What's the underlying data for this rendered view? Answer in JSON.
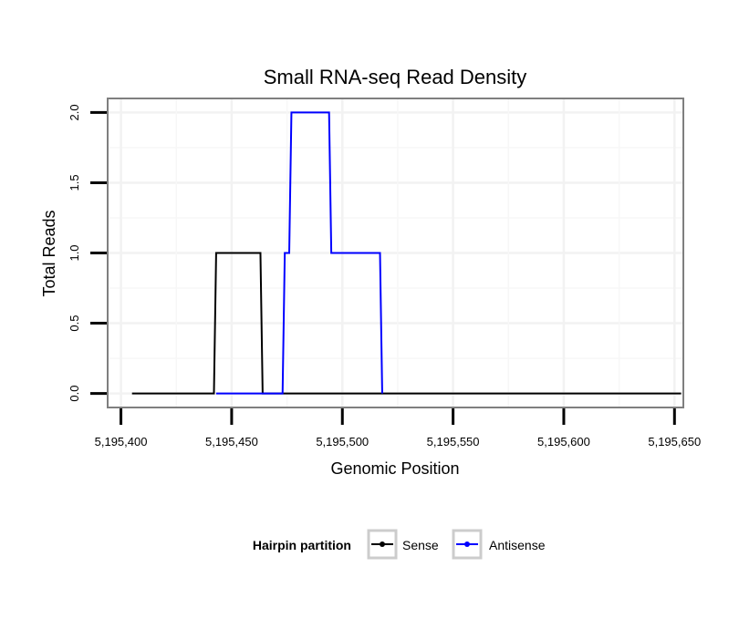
{
  "chart_data": {
    "type": "line",
    "title": "Small RNA-seq Read Density",
    "xlabel": "Genomic Position",
    "ylabel": "Total Reads",
    "xlim": [
      5195394,
      5195654
    ],
    "ylim": [
      -0.1,
      2.1
    ],
    "x_ticks": [
      5195400,
      5195450,
      5195500,
      5195550,
      5195600,
      5195650
    ],
    "x_tick_labels": [
      "5,195,400",
      "5,195,450",
      "5,195,500",
      "5,195,550",
      "5,195,600",
      "5,195,650"
    ],
    "y_ticks": [
      0,
      0.5,
      1,
      1.5,
      2
    ],
    "y_tick_labels": [
      "0.0",
      "0.5",
      "1.0",
      "1.5",
      "2.0"
    ],
    "grid": true,
    "legend": {
      "title": "Hairpin partition",
      "position": "bottom"
    },
    "series": [
      {
        "name": "Sense",
        "color": "#000000",
        "x": [
          5195405,
          5195442,
          5195443,
          5195463,
          5195464,
          5195653
        ],
        "y": [
          0,
          0,
          1,
          1,
          0,
          0
        ]
      },
      {
        "name": "Antisense",
        "color": "#0000ff",
        "x": [
          5195443,
          5195473,
          5195474,
          5195476,
          5195477,
          5195494,
          5195495,
          5195517,
          5195518
        ],
        "y": [
          0,
          0,
          1,
          1,
          2,
          2,
          1,
          1,
          0
        ]
      }
    ]
  }
}
